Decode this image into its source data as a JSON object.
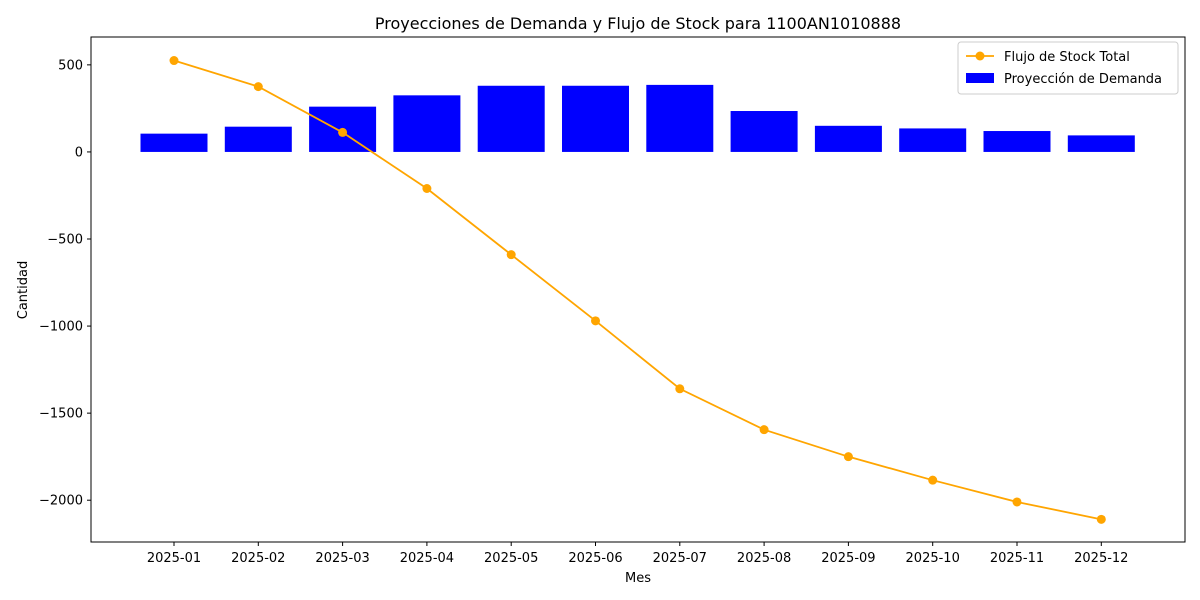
{
  "chart_data": {
    "type": "bar+line",
    "title": "Proyecciones de Demanda y Flujo de Stock para 1100AN1010888",
    "xlabel": "Mes",
    "ylabel": "Cantidad",
    "categories": [
      "2025-01",
      "2025-02",
      "2025-03",
      "2025-04",
      "2025-05",
      "2025-06",
      "2025-07",
      "2025-08",
      "2025-09",
      "2025-10",
      "2025-11",
      "2025-12"
    ],
    "series": [
      {
        "name": "Proyección de Demanda",
        "kind": "bar",
        "color": "#0000ff",
        "values": [
          105,
          145,
          260,
          325,
          380,
          380,
          385,
          235,
          150,
          135,
          120,
          95
        ]
      },
      {
        "name": "Flujo de Stock Total",
        "kind": "line",
        "color": "#ffa500",
        "values": [
          525,
          375,
          112,
          -210,
          -590,
          -970,
          -1360,
          -1595,
          -1750,
          -1885,
          -2010,
          -2110
        ]
      }
    ],
    "ylim": [
      -2240,
      660
    ],
    "yticks": [
      500,
      0,
      -500,
      -1000,
      -1500,
      -2000
    ],
    "ytick_labels": [
      "500",
      "0",
      "−500",
      "−1000",
      "−1500",
      "−2000"
    ],
    "grid": false,
    "legend_position": "top-right"
  }
}
